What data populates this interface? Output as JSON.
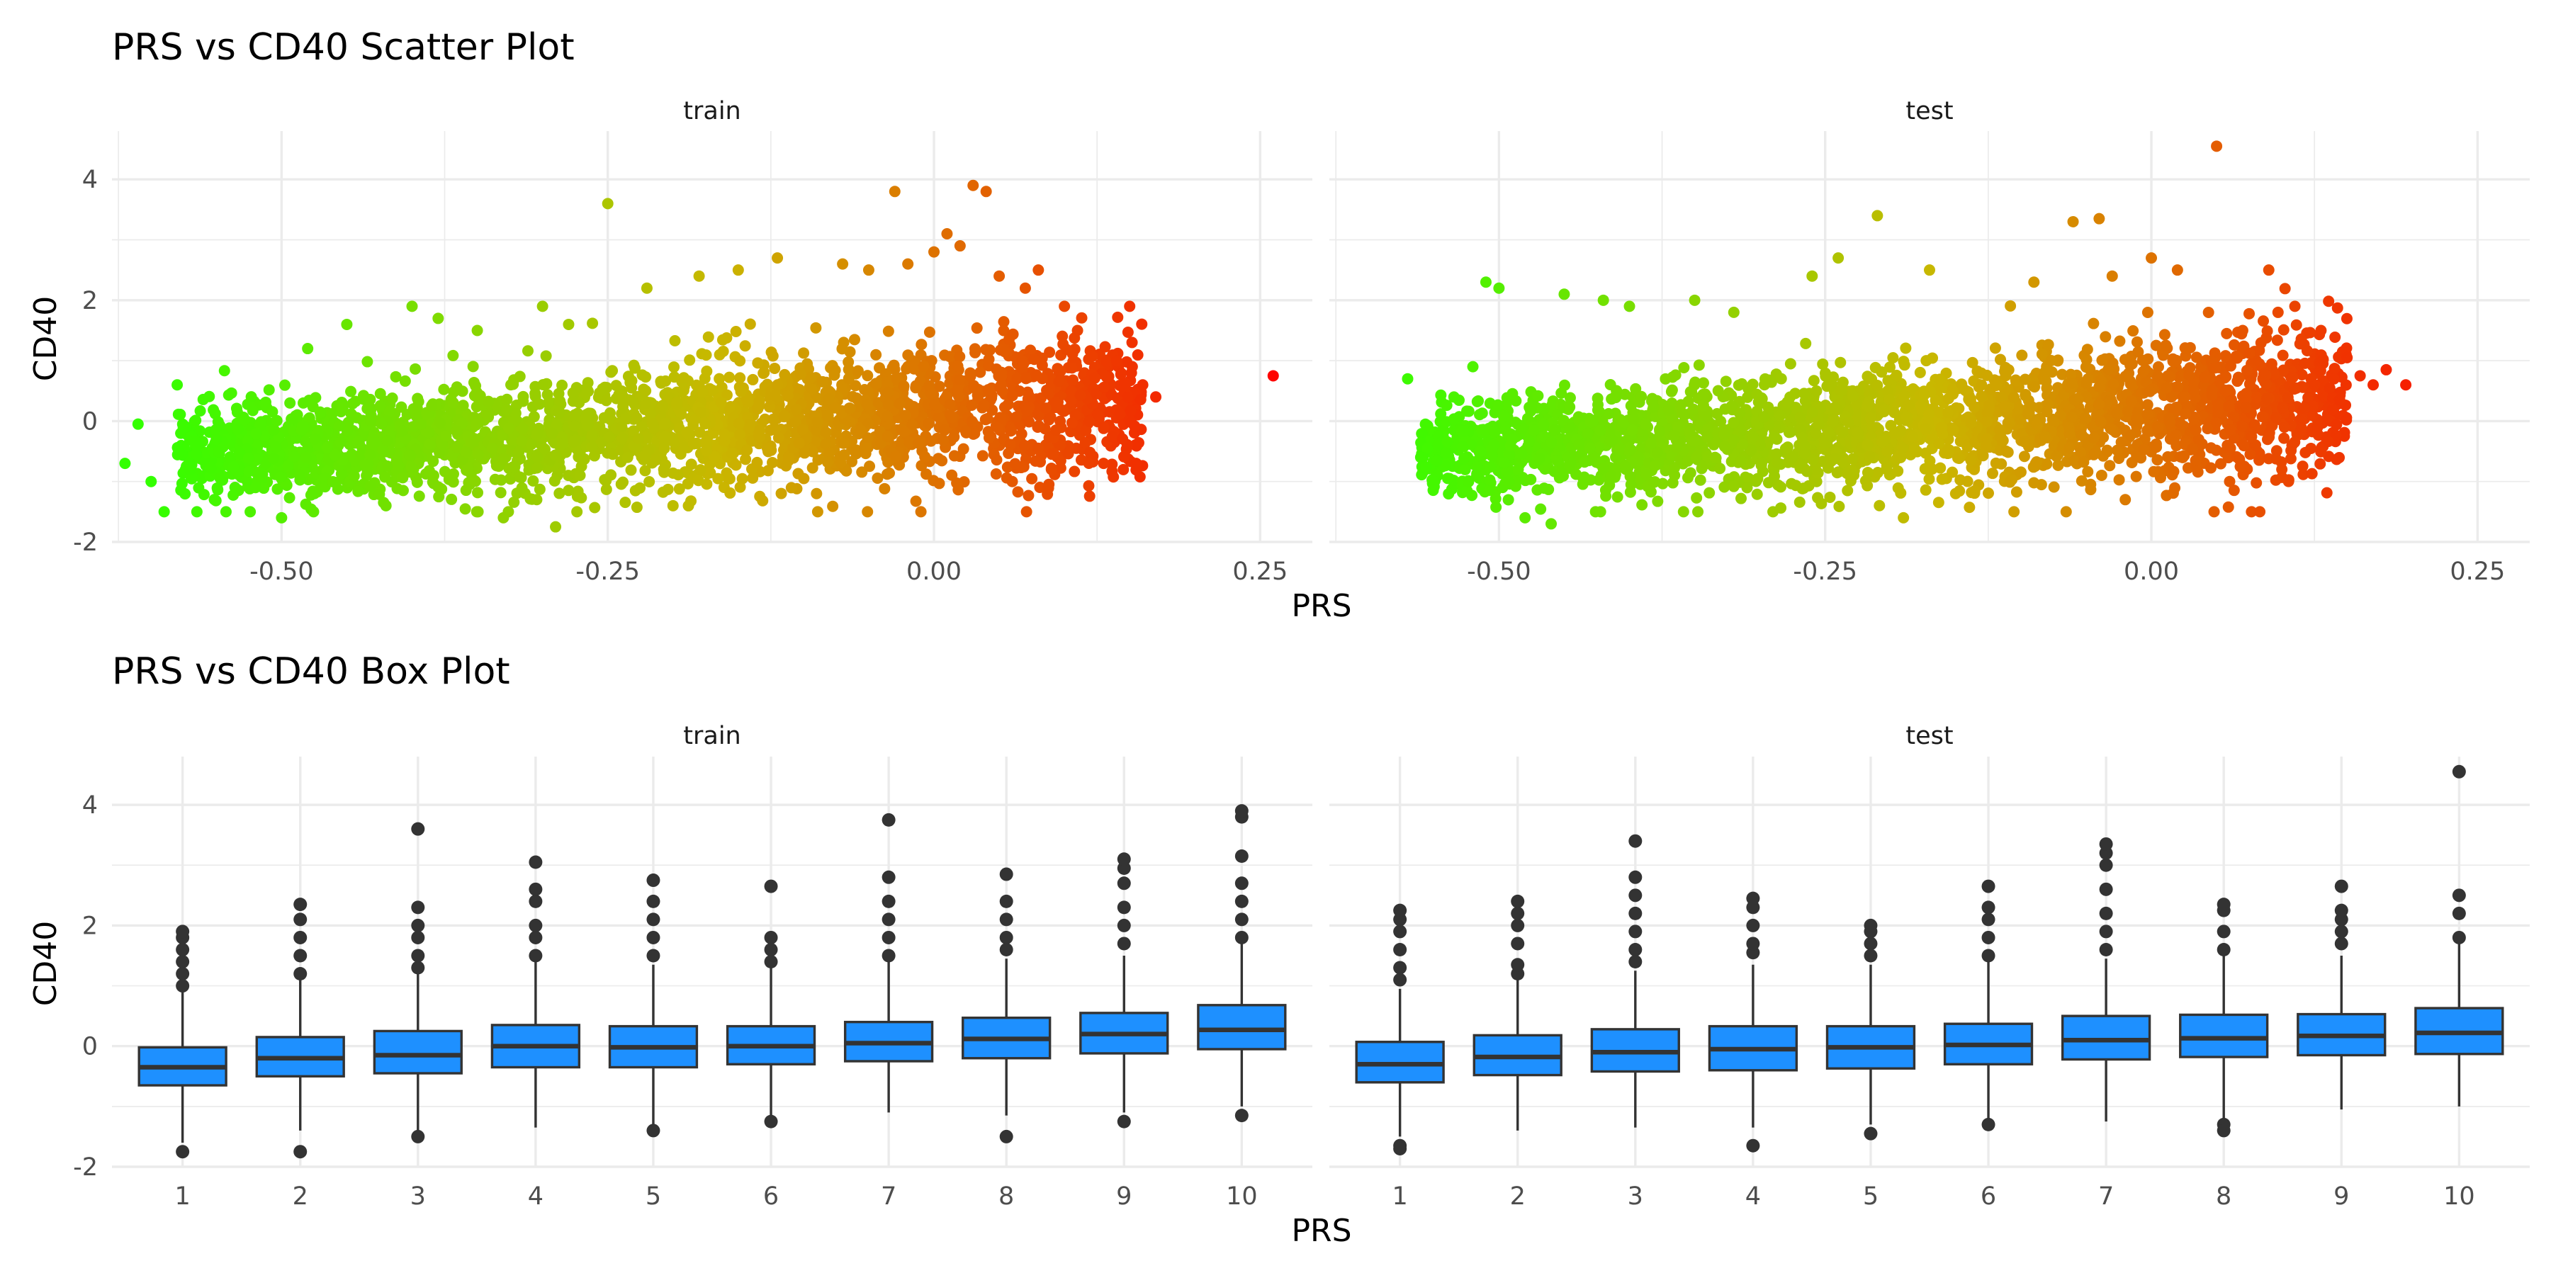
{
  "colors": {
    "point_low": "#33ff00",
    "point_mid": "#c9b700",
    "point_high": "#ff0000",
    "box_fill": "#1e90ff",
    "box_line": "#333333",
    "outlier": "#333333",
    "grid": "#ebebeb"
  },
  "scatter_plot": {
    "title": "PRS vs CD40 Scatter Plot",
    "xlabel": "PRS",
    "ylabel": "CD40"
  },
  "box_plot": {
    "title": "PRS vs CD40 Box Plot",
    "xlabel": "PRS",
    "ylabel": "CD40"
  },
  "chart_data": [
    {
      "type": "scatter",
      "title": "PRS vs CD40 Scatter Plot",
      "xlabel": "PRS",
      "ylabel": "CD40",
      "facets": [
        "train",
        "test"
      ],
      "xlim": [
        -0.63,
        0.29
      ],
      "ylim": [
        -2,
        4.8
      ],
      "xticks": [
        -0.5,
        -0.25,
        0.0,
        0.25
      ],
      "xtick_labels": [
        "-0.50",
        "-0.25",
        "0.00",
        "0.25"
      ],
      "yticks": [
        -2,
        0,
        2,
        4
      ],
      "ytick_labels": [
        "-2",
        "0",
        "2",
        "4"
      ],
      "color_scale": "PRS (green low to red high)",
      "legend": "none",
      "grid": true,
      "points": {
        "train": [
          [
            -0.61,
            -0.05
          ],
          [
            -0.62,
            -0.7
          ],
          [
            -0.6,
            -1.0
          ],
          [
            -0.59,
            -1.5
          ],
          [
            -0.58,
            0.6
          ],
          [
            -0.57,
            -0.8
          ],
          [
            -0.55,
            -0.3
          ],
          [
            -0.52,
            -1.1
          ],
          [
            -0.5,
            -1.6
          ],
          [
            -0.48,
            1.2
          ],
          [
            -0.45,
            1.6
          ],
          [
            -0.42,
            -1.4
          ],
          [
            -0.4,
            1.9
          ],
          [
            -0.38,
            1.7
          ],
          [
            -0.35,
            1.5
          ],
          [
            -0.33,
            -1.6
          ],
          [
            -0.3,
            1.9
          ],
          [
            -0.29,
            -1.75
          ],
          [
            -0.28,
            1.6
          ],
          [
            -0.25,
            3.6
          ],
          [
            -0.22,
            2.2
          ],
          [
            -0.2,
            -1.4
          ],
          [
            -0.18,
            2.4
          ],
          [
            -0.15,
            2.5
          ],
          [
            -0.12,
            2.7
          ],
          [
            -0.09,
            -1.2
          ],
          [
            -0.07,
            2.6
          ],
          [
            -0.05,
            2.5
          ],
          [
            -0.03,
            3.8
          ],
          [
            -0.02,
            2.6
          ],
          [
            -0.01,
            -1.5
          ],
          [
            0.0,
            2.8
          ],
          [
            0.01,
            3.1
          ],
          [
            0.02,
            2.9
          ],
          [
            0.03,
            3.9
          ],
          [
            0.04,
            3.8
          ],
          [
            0.05,
            2.4
          ],
          [
            0.06,
            -1.0
          ],
          [
            0.07,
            2.2
          ],
          [
            0.08,
            2.5
          ],
          [
            0.09,
            -0.8
          ],
          [
            0.1,
            1.9
          ],
          [
            0.11,
            1.5
          ],
          [
            0.13,
            -0.7
          ],
          [
            0.14,
            1.0
          ],
          [
            0.15,
            1.9
          ],
          [
            0.16,
            0.6
          ],
          [
            0.17,
            0.4
          ],
          [
            0.155,
            -0.7
          ],
          [
            0.26,
            0.75
          ]
        ],
        "test": [
          [
            -0.57,
            0.7
          ],
          [
            -0.56,
            -0.6
          ],
          [
            -0.55,
            -1.0
          ],
          [
            -0.52,
            0.9
          ],
          [
            -0.51,
            2.3
          ],
          [
            -0.5,
            2.2
          ],
          [
            -0.48,
            -1.6
          ],
          [
            -0.46,
            -1.7
          ],
          [
            -0.45,
            2.1
          ],
          [
            -0.42,
            2.0
          ],
          [
            -0.4,
            1.9
          ],
          [
            -0.35,
            2.0
          ],
          [
            -0.32,
            1.8
          ],
          [
            -0.29,
            -1.5
          ],
          [
            -0.26,
            2.4
          ],
          [
            -0.24,
            2.7
          ],
          [
            -0.21,
            3.4
          ],
          [
            -0.19,
            -1.6
          ],
          [
            -0.17,
            2.5
          ],
          [
            -0.15,
            -1.2
          ],
          [
            -0.09,
            2.3
          ],
          [
            -0.06,
            3.3
          ],
          [
            -0.04,
            3.35
          ],
          [
            -0.03,
            2.4
          ],
          [
            -0.02,
            -1.3
          ],
          [
            0.0,
            2.7
          ],
          [
            0.02,
            2.5
          ],
          [
            0.05,
            4.55
          ],
          [
            0.06,
            -1.0
          ],
          [
            0.07,
            1.5
          ],
          [
            0.09,
            2.5
          ],
          [
            0.1,
            -0.8
          ],
          [
            0.11,
            1.9
          ],
          [
            0.13,
            1.5
          ],
          [
            0.14,
            0.7
          ],
          [
            0.15,
            1.05
          ],
          [
            0.16,
            0.75
          ],
          [
            0.17,
            0.6
          ],
          [
            0.18,
            0.85
          ],
          [
            0.195,
            0.6
          ]
        ]
      }
    },
    {
      "type": "box",
      "title": "PRS vs CD40 Box Plot",
      "xlabel": "PRS",
      "ylabel": "CD40",
      "facets": [
        "train",
        "test"
      ],
      "categories": [
        "1",
        "2",
        "3",
        "4",
        "5",
        "6",
        "7",
        "8",
        "9",
        "10"
      ],
      "ylim": [
        -2,
        4.8
      ],
      "yticks": [
        -2,
        0,
        2,
        4
      ],
      "ytick_labels": [
        "-2",
        "0",
        "2",
        "4"
      ],
      "legend": "none",
      "grid": true,
      "series": [
        {
          "name": "train",
          "boxes": [
            {
              "q1": -0.65,
              "median": -0.35,
              "q3": -0.02,
              "whisker_low": -1.6,
              "whisker_high": 0.9,
              "outliers": [
                -1.75,
                1.0,
                1.2,
                1.4,
                1.6,
                1.8,
                1.9
              ]
            },
            {
              "q1": -0.5,
              "median": -0.2,
              "q3": 0.15,
              "whisker_low": -1.4,
              "whisker_high": 1.1,
              "outliers": [
                -1.75,
                1.2,
                1.5,
                1.8,
                2.1,
                2.35
              ]
            },
            {
              "q1": -0.45,
              "median": -0.15,
              "q3": 0.25,
              "whisker_low": -1.4,
              "whisker_high": 1.2,
              "outliers": [
                -1.5,
                1.3,
                1.5,
                1.8,
                2.0,
                2.3,
                3.6
              ]
            },
            {
              "q1": -0.35,
              "median": 0.0,
              "q3": 0.35,
              "whisker_low": -1.35,
              "whisker_high": 1.4,
              "outliers": [
                1.5,
                1.8,
                2.0,
                2.4,
                2.6,
                3.05
              ]
            },
            {
              "q1": -0.35,
              "median": -0.02,
              "q3": 0.33,
              "whisker_low": -1.3,
              "whisker_high": 1.35,
              "outliers": [
                -1.4,
                1.5,
                1.8,
                2.1,
                2.4,
                2.75
              ]
            },
            {
              "q1": -0.3,
              "median": 0.0,
              "q3": 0.33,
              "whisker_low": -1.2,
              "whisker_high": 1.3,
              "outliers": [
                -1.25,
                1.4,
                1.6,
                1.8,
                2.65
              ]
            },
            {
              "q1": -0.25,
              "median": 0.05,
              "q3": 0.4,
              "whisker_low": -1.1,
              "whisker_high": 1.4,
              "outliers": [
                1.5,
                1.8,
                2.1,
                2.4,
                2.8,
                3.75
              ]
            },
            {
              "q1": -0.2,
              "median": 0.12,
              "q3": 0.47,
              "whisker_low": -1.15,
              "whisker_high": 1.45,
              "outliers": [
                -1.5,
                1.6,
                1.8,
                2.1,
                2.4,
                2.85
              ]
            },
            {
              "q1": -0.12,
              "median": 0.2,
              "q3": 0.55,
              "whisker_low": -1.1,
              "whisker_high": 1.5,
              "outliers": [
                -1.25,
                1.7,
                2.0,
                2.3,
                2.7,
                2.95,
                3.1
              ]
            },
            {
              "q1": -0.05,
              "median": 0.27,
              "q3": 0.68,
              "whisker_low": -1.0,
              "whisker_high": 1.7,
              "outliers": [
                -1.15,
                1.8,
                2.1,
                2.4,
                2.7,
                3.15,
                3.8,
                3.9
              ]
            }
          ]
        },
        {
          "name": "test",
          "boxes": [
            {
              "q1": -0.6,
              "median": -0.3,
              "q3": 0.07,
              "whisker_low": -1.5,
              "whisker_high": 0.95,
              "outliers": [
                -1.65,
                -1.7,
                1.1,
                1.3,
                1.6,
                1.9,
                2.1,
                2.25
              ]
            },
            {
              "q1": -0.48,
              "median": -0.18,
              "q3": 0.18,
              "whisker_low": -1.4,
              "whisker_high": 1.15,
              "outliers": [
                1.2,
                1.35,
                1.7,
                2.0,
                2.2,
                2.4
              ]
            },
            {
              "q1": -0.42,
              "median": -0.1,
              "q3": 0.28,
              "whisker_low": -1.35,
              "whisker_high": 1.25,
              "outliers": [
                1.4,
                1.6,
                1.9,
                2.2,
                2.5,
                2.8,
                3.4
              ]
            },
            {
              "q1": -0.4,
              "median": -0.05,
              "q3": 0.33,
              "whisker_low": -1.35,
              "whisker_high": 1.35,
              "outliers": [
                -1.65,
                1.55,
                1.7,
                2.0,
                2.3,
                2.45
              ]
            },
            {
              "q1": -0.37,
              "median": -0.02,
              "q3": 0.33,
              "whisker_low": -1.3,
              "whisker_high": 1.35,
              "outliers": [
                -1.45,
                1.5,
                1.7,
                1.9,
                2.0
              ]
            },
            {
              "q1": -0.3,
              "median": 0.02,
              "q3": 0.37,
              "whisker_low": -1.25,
              "whisker_high": 1.4,
              "outliers": [
                -1.3,
                1.5,
                1.8,
                2.1,
                2.3,
                2.65
              ]
            },
            {
              "q1": -0.22,
              "median": 0.1,
              "q3": 0.5,
              "whisker_low": -1.25,
              "whisker_high": 1.45,
              "outliers": [
                1.6,
                1.9,
                2.2,
                2.6,
                3.0,
                3.2,
                3.35
              ]
            },
            {
              "q1": -0.18,
              "median": 0.13,
              "q3": 0.52,
              "whisker_low": -1.2,
              "whisker_high": 1.5,
              "outliers": [
                -1.3,
                -1.4,
                1.6,
                1.9,
                2.25,
                2.35
              ]
            },
            {
              "q1": -0.15,
              "median": 0.17,
              "q3": 0.53,
              "whisker_low": -1.05,
              "whisker_high": 1.5,
              "outliers": [
                1.7,
                1.9,
                2.1,
                2.25,
                2.65
              ]
            },
            {
              "q1": -0.13,
              "median": 0.22,
              "q3": 0.63,
              "whisker_low": -1.0,
              "whisker_high": 1.7,
              "outliers": [
                1.8,
                2.2,
                2.5,
                4.55
              ]
            }
          ]
        }
      ]
    }
  ]
}
